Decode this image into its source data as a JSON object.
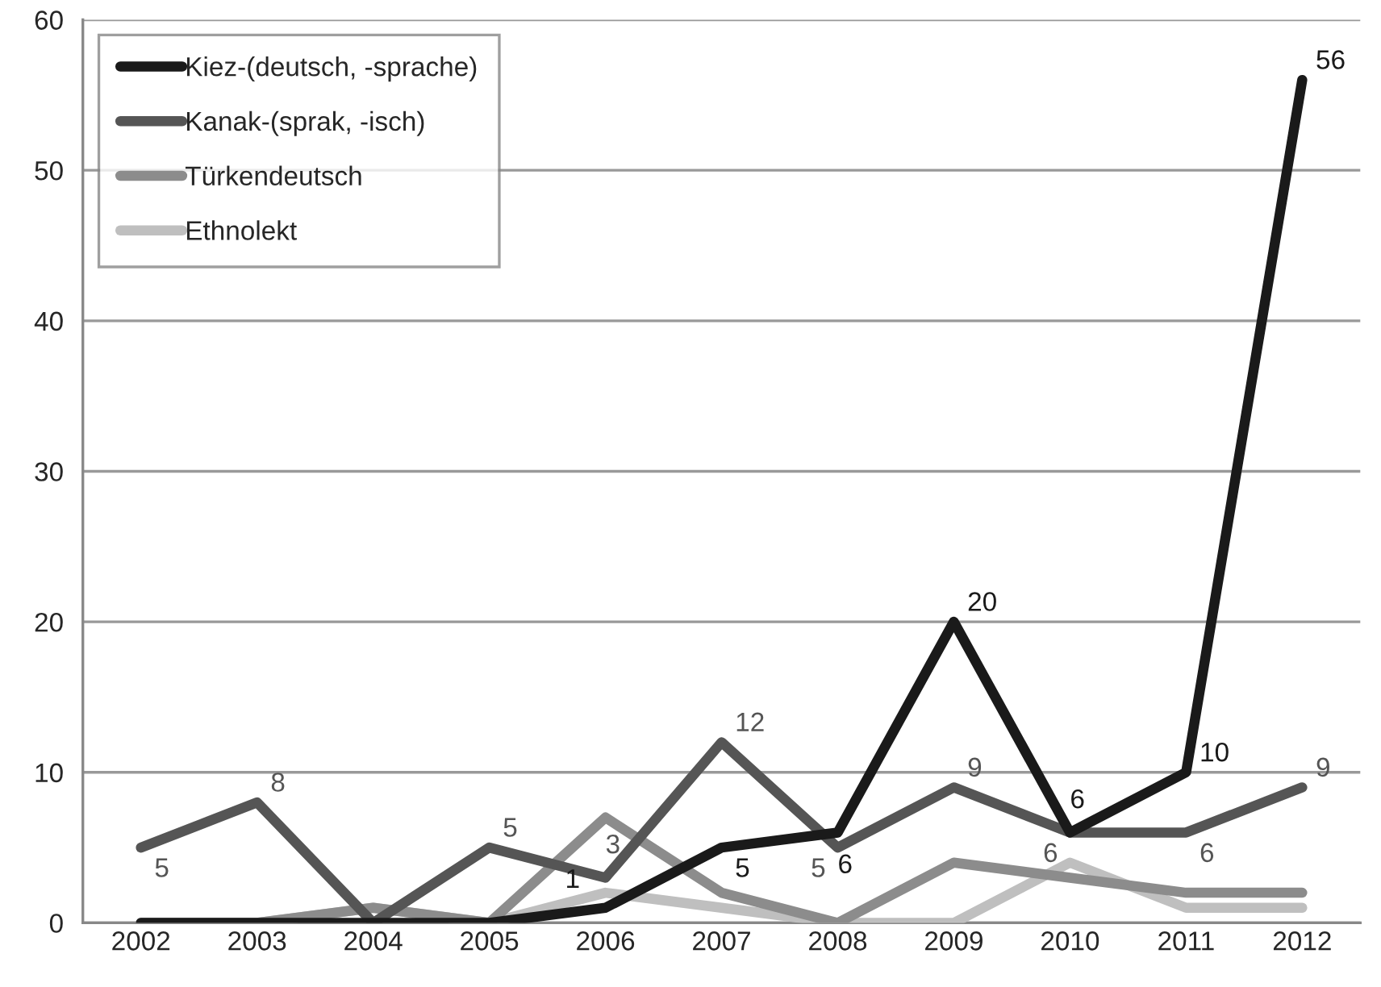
{
  "chart_data": {
    "type": "line",
    "categories": [
      "2002",
      "2003",
      "2004",
      "2005",
      "2006",
      "2007",
      "2008",
      "2009",
      "2010",
      "2011",
      "2012"
    ],
    "series": [
      {
        "name": "Kiez-(deutsch, -sprache)",
        "color": "#1a1a1a",
        "values": [
          0,
          0,
          0,
          0,
          1,
          5,
          6,
          20,
          6,
          10,
          56
        ],
        "value_labels": [
          null,
          null,
          null,
          null,
          "1",
          "5",
          "6",
          "20",
          "6",
          "10",
          "56"
        ]
      },
      {
        "name": "Kanak-(sprak, -isch)",
        "color": "#555555",
        "values": [
          5,
          8,
          0,
          5,
          3,
          12,
          5,
          9,
          6,
          6,
          9
        ],
        "value_labels": [
          "5",
          "8",
          null,
          "5",
          "3",
          "12",
          "5",
          "9",
          "6",
          "6",
          "9"
        ]
      },
      {
        "name": "Türkendeutsch",
        "color": "#8c8c8c",
        "values": [
          0,
          0,
          1,
          0,
          7,
          2,
          0,
          4,
          3,
          2,
          2
        ]
      },
      {
        "name": "Ethnolekt",
        "color": "#bfbfbf",
        "values": [
          0,
          0,
          1,
          0,
          2,
          1,
          0,
          0,
          4,
          1,
          1
        ]
      }
    ],
    "ylim": [
      0,
      60
    ],
    "yticks": [
      0,
      10,
      20,
      30,
      40,
      50,
      60
    ],
    "grid": "y",
    "legend": "top left",
    "marker": "none",
    "line_style": "solid"
  }
}
